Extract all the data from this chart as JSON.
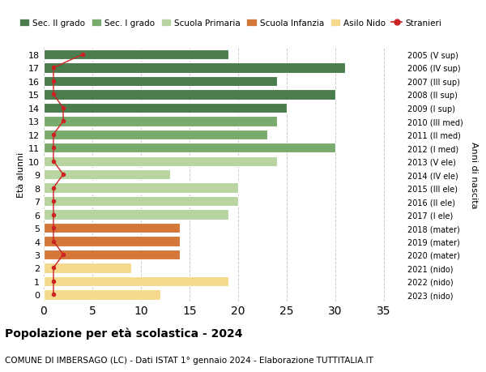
{
  "ages": [
    18,
    17,
    16,
    15,
    14,
    13,
    12,
    11,
    10,
    9,
    8,
    7,
    6,
    5,
    4,
    3,
    2,
    1,
    0
  ],
  "years": [
    "2005 (V sup)",
    "2006 (IV sup)",
    "2007 (III sup)",
    "2008 (II sup)",
    "2009 (I sup)",
    "2010 (III med)",
    "2011 (II med)",
    "2012 (I med)",
    "2013 (V ele)",
    "2014 (IV ele)",
    "2015 (III ele)",
    "2016 (II ele)",
    "2017 (I ele)",
    "2018 (mater)",
    "2019 (mater)",
    "2020 (mater)",
    "2021 (nido)",
    "2022 (nido)",
    "2023 (nido)"
  ],
  "values": [
    19,
    31,
    24,
    30,
    25,
    24,
    23,
    30,
    24,
    13,
    20,
    20,
    19,
    14,
    14,
    14,
    9,
    19,
    12
  ],
  "bar_colors": [
    "#4a7c4e",
    "#4a7c4e",
    "#4a7c4e",
    "#4a7c4e",
    "#4a7c4e",
    "#7aab6e",
    "#7aab6e",
    "#7aab6e",
    "#b8d4a0",
    "#b8d4a0",
    "#b8d4a0",
    "#b8d4a0",
    "#b8d4a0",
    "#d4783a",
    "#d4783a",
    "#d4783a",
    "#f5d98e",
    "#f5d98e",
    "#f5d98e"
  ],
  "legend_labels": [
    "Sec. II grado",
    "Sec. I grado",
    "Scuola Primaria",
    "Scuola Infanzia",
    "Asilo Nido",
    "Stranieri"
  ],
  "legend_colors": [
    "#4a7c4e",
    "#7aab6e",
    "#b8d4a0",
    "#d4783a",
    "#f5d98e",
    "#cc2222"
  ],
  "title": "Popolazione per età scolastica - 2024",
  "subtitle": "COMUNE DI IMBERSAGO (LC) - Dati ISTAT 1° gennaio 2024 - Elaborazione TUTTITALIA.IT",
  "ylabel_left": "Età alunni",
  "ylabel_right": "Anni di nascita",
  "xlim": [
    0,
    37
  ],
  "background_color": "#ffffff",
  "grid_color": "#cccccc",
  "stranieri_color": "#cc2222",
  "stranieri_x": [
    4,
    1,
    1,
    1,
    2,
    2,
    1,
    1,
    1,
    2,
    1,
    1,
    1,
    1,
    1,
    2,
    1,
    1,
    1
  ]
}
